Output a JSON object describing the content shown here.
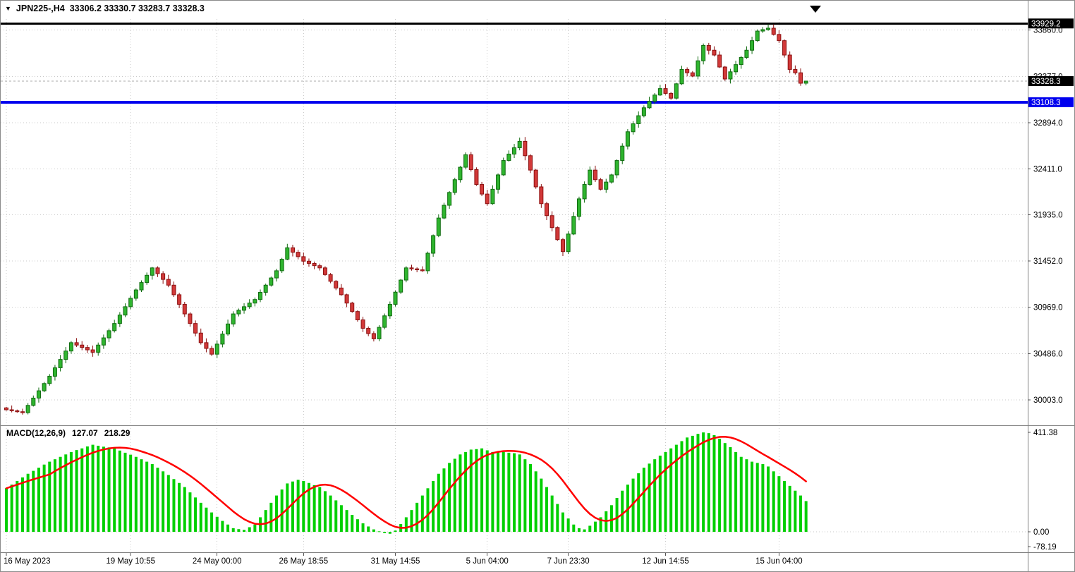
{
  "header": {
    "symbol_period": "JPN225-,H4",
    "ohlc": "33306.2 33330.7 33283.7 33328.3"
  },
  "icons": {
    "symbol_marker": "▼"
  },
  "indicator": {
    "label": "MACD(12,26,9)",
    "macd_value": "127.07",
    "signal_value": "218.29"
  },
  "colors": {
    "up": "#2fb52f",
    "up_border": "#0f6b0f",
    "down": "#d23939",
    "down_border": "#8b1010",
    "grid": "#c9c9c9",
    "separator": "#808080",
    "histogram": "#00cf00",
    "signal_line": "#ff0000",
    "level_black": "#000000",
    "level_blue": "#0000ee",
    "bid_line": "#ababab",
    "price_box_text": "#ffffff"
  },
  "price_axis": {
    "grid_labels": [
      "33860.0",
      "33377.0",
      "32894.0",
      "32411.0",
      "31935.0",
      "31452.0",
      "30969.0",
      "30486.0",
      "30003.0"
    ],
    "marked": [
      {
        "label": "33929.2",
        "price": 33929.2,
        "bg": "#000000"
      },
      {
        "label": "33328.3",
        "price": 33328.3,
        "bg": "#000000"
      },
      {
        "label": "33108.3",
        "price": 33108.3,
        "bg": "#0000ee"
      }
    ]
  },
  "macd_axis": [
    {
      "label": "411.38",
      "value": 411.38
    },
    {
      "label": "0.00",
      "value": 0
    },
    {
      "label": "-78.19",
      "value": -78.19
    }
  ],
  "time_axis": [
    {
      "label": "16 May 2023",
      "index": 0
    },
    {
      "label": "19 May 10:55",
      "index": 23
    },
    {
      "label": "24 May 00:00",
      "index": 39
    },
    {
      "label": "26 May 18:55",
      "index": 55
    },
    {
      "label": "31 May 14:55",
      "index": 72
    },
    {
      "label": "5 Jun 04:00",
      "index": 89
    },
    {
      "label": "7 Jun 23:30",
      "index": 104
    },
    {
      "label": "12 Jun 14:55",
      "index": 122
    },
    {
      "label": "15 Jun 04:00",
      "index": 143
    }
  ],
  "chart_data": {
    "type": "candlestick",
    "symbol": "JPN225-",
    "timeframe": "H4",
    "title": "JPN225-,H4 33306.2 33330.7 33283.7 33328.3",
    "ohlc_current": {
      "open": 33306.2,
      "high": 33330.7,
      "low": 33283.7,
      "close": 33328.3
    },
    "ylim": [
      29850,
      33980
    ],
    "price_ticks": [
      33860,
      33377,
      32894,
      32411,
      31935,
      31452,
      30969,
      30486,
      30003
    ],
    "levels": [
      {
        "price": 33929.2,
        "color": "#000000",
        "width": 3
      },
      {
        "price": 33108.3,
        "color": "#0000ee",
        "width": 4
      }
    ],
    "current_price_line": 33328.3,
    "first_open": 29920,
    "closes": [
      29900,
      29890,
      29880,
      29870,
      29946,
      30022,
      30098,
      30174,
      30250,
      30338,
      30425,
      30513,
      30600,
      30575,
      30550,
      30525,
      30500,
      30575,
      30650,
      30725,
      30800,
      30888,
      30975,
      31063,
      31150,
      31227,
      31303,
      31380,
      31320,
      31260,
      31200,
      31100,
      31000,
      30900,
      30800,
      30700,
      30600,
      30540,
      30480,
      30585,
      30690,
      30795,
      30900,
      30938,
      30975,
      31013,
      31050,
      31125,
      31200,
      31275,
      31350,
      31470,
      31590,
      31543,
      31497,
      31450,
      31427,
      31403,
      31380,
      31310,
      31240,
      31170,
      31100,
      31013,
      30925,
      30838,
      30750,
      30695,
      30640,
      30760,
      30880,
      31000,
      31127,
      31253,
      31380,
      31370,
      31360,
      31350,
      31533,
      31717,
      31900,
      32033,
      32167,
      32300,
      32430,
      32560,
      32405,
      32250,
      32150,
      32050,
      32200,
      32350,
      32500,
      32567,
      32633,
      32700,
      32550,
      32400,
      32225,
      32050,
      31925,
      31800,
      31675,
      31550,
      31733,
      31917,
      32100,
      32250,
      32400,
      32300,
      32200,
      32275,
      32350,
      32500,
      32650,
      32800,
      32883,
      32967,
      33050,
      33117,
      33183,
      33250,
      33200,
      33150,
      33300,
      33450,
      33415,
      33380,
      33540,
      33700,
      33650,
      33600,
      33475,
      33350,
      33425,
      33500,
      33575,
      33650,
      33750,
      33850,
      33865,
      33880,
      33815,
      33750,
      33600,
      33450,
      33415,
      33306,
      33328.3
    ],
    "last_candle": {
      "open": 33306.2,
      "high": 33330.7,
      "low": 33283.7,
      "close": 33328.3
    },
    "macd": {
      "params": "12,26,9",
      "value": 127.07,
      "signal_value": 218.29,
      "signal_period": 9,
      "range": {
        "max": 411.38,
        "min": -78.19
      },
      "histogram": [
        180,
        195,
        210,
        225,
        240,
        252,
        265,
        278,
        290,
        300,
        310,
        320,
        330,
        338,
        345,
        353,
        360,
        356,
        352,
        349,
        345,
        336,
        327,
        319,
        310,
        300,
        290,
        280,
        265,
        250,
        235,
        218,
        202,
        185,
        163,
        142,
        120,
        100,
        80,
        62,
        45,
        30,
        15,
        11,
        8,
        19,
        30,
        60,
        90,
        120,
        150,
        175,
        200,
        208,
        215,
        210,
        202,
        193,
        185,
        168,
        150,
        130,
        110,
        90,
        70,
        52,
        35,
        22,
        10,
        2,
        -5,
        -8,
        5,
        32,
        60,
        90,
        120,
        150,
        180,
        210,
        240,
        262,
        285,
        302,
        320,
        330,
        340,
        342,
        345,
        337,
        330,
        330,
        330,
        327,
        325,
        320,
        300,
        280,
        250,
        220,
        185,
        150,
        115,
        80,
        55,
        30,
        15,
        10,
        25,
        42,
        60,
        85,
        110,
        140,
        170,
        195,
        220,
        242,
        265,
        282,
        300,
        315,
        330,
        345,
        360,
        375,
        390,
        397,
        405,
        411,
        408,
        400,
        385,
        367,
        350,
        330,
        310,
        300,
        290,
        285,
        280,
        270,
        250,
        230,
        210,
        190,
        170,
        150,
        127
      ]
    }
  }
}
